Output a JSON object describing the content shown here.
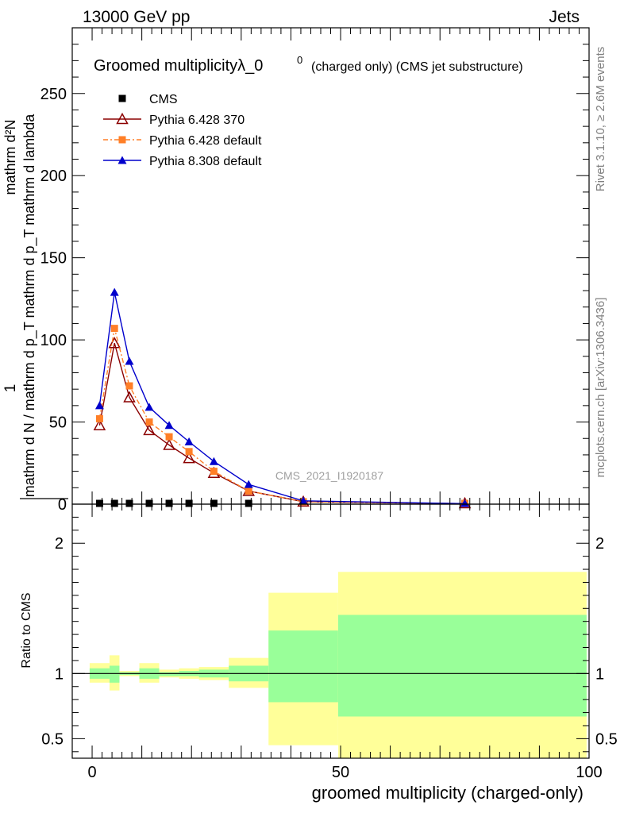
{
  "header": {
    "left": "13000 GeV pp",
    "right": "Jets"
  },
  "side_labels": {
    "rivet": "Rivet 3.1.10, ≥ 2.6M events",
    "mcplots": "mcplots.cern.ch [arXiv:1306.3436]"
  },
  "watermark": "CMS_2021_I1920187",
  "chart_data": [
    {
      "type": "line",
      "title": "Groomed multiplicityλ_0",
      "title_sup": "0",
      "subtitle": "(charged only) (CMS jet substructure)",
      "ylabel_num": "1",
      "ylabel_den": "mathrm d N / mathrm d p_T mathrm d p_T mathrm d lambda",
      "ylabel_num2": "mathrm d²N",
      "xlim": [
        -4,
        100
      ],
      "ylim": [
        0,
        290
      ],
      "yticks": [
        0,
        50,
        100,
        150,
        200,
        250
      ],
      "ytick_labels": [
        "0",
        "50",
        "100",
        "150",
        "200",
        "250"
      ],
      "legend_position": "top-left",
      "series": [
        {
          "name": "CMS",
          "color": "#000000",
          "marker": "square",
          "x": [
            1.5,
            4.5,
            7.5,
            11.5,
            15.5,
            19.5,
            24.5,
            31.5
          ],
          "y": [
            0.3,
            0.3,
            0.3,
            0.3,
            0.3,
            0.3,
            0.3,
            0.3
          ]
        },
        {
          "name": "Pythia 6.428 370",
          "color": "#8b0000",
          "marker": "open-triangle",
          "x": [
            1.5,
            4.5,
            7.5,
            11.5,
            15.5,
            19.5,
            24.5,
            31.5,
            42.5,
            75
          ],
          "y": [
            48,
            98,
            65,
            45,
            36,
            28,
            19,
            8,
            1.5,
            0.3
          ]
        },
        {
          "name": "Pythia 6.428 default",
          "color": "#ff7f27",
          "marker": "square",
          "x": [
            1.5,
            4.5,
            7.5,
            11.5,
            15.5,
            19.5,
            24.5,
            31.5,
            42.5,
            75
          ],
          "y": [
            52,
            107,
            72,
            50,
            41,
            32,
            20,
            8,
            1.5,
            0.3
          ]
        },
        {
          "name": "Pythia 8.308 default",
          "color": "#0000cc",
          "marker": "filled-triangle",
          "x": [
            1.5,
            4.5,
            7.5,
            11.5,
            15.5,
            19.5,
            24.5,
            31.5,
            42.5,
            75
          ],
          "y": [
            60,
            129,
            87,
            59,
            48,
            38,
            26,
            12,
            2,
            0.3
          ]
        }
      ]
    },
    {
      "type": "area",
      "ylabel": "Ratio to CMS",
      "xlabel": "groomed multiplicity (charged-only)",
      "xlim": [
        -4,
        100
      ],
      "ylim": [
        0.35,
        2.3
      ],
      "yticks": [
        0.5,
        1,
        2
      ],
      "ytick_labels": [
        "0.5",
        "1",
        "2"
      ],
      "xticks": [
        0,
        50,
        100
      ],
      "xtick_labels": [
        "0",
        "50",
        "100"
      ],
      "reference_line": 1,
      "bands": [
        {
          "x0": -0.5,
          "x1": 3.5,
          "inner": [
            0.96,
            1.04
          ],
          "outer": [
            0.93,
            1.08
          ]
        },
        {
          "x0": 3.5,
          "x1": 5.5,
          "inner": [
            0.93,
            1.06
          ],
          "outer": [
            0.87,
            1.14
          ]
        },
        {
          "x0": 5.5,
          "x1": 9.5,
          "inner": [
            0.99,
            1.01
          ],
          "outer": [
            0.98,
            1.02
          ]
        },
        {
          "x0": 9.5,
          "x1": 13.5,
          "inner": [
            0.96,
            1.04
          ],
          "outer": [
            0.93,
            1.08
          ]
        },
        {
          "x0": 13.5,
          "x1": 17.5,
          "inner": [
            0.98,
            1.01
          ],
          "outer": [
            0.97,
            1.03
          ]
        },
        {
          "x0": 17.5,
          "x1": 21.5,
          "inner": [
            0.98,
            1.02
          ],
          "outer": [
            0.96,
            1.04
          ]
        },
        {
          "x0": 21.5,
          "x1": 27.5,
          "inner": [
            0.97,
            1.03
          ],
          "outer": [
            0.95,
            1.05
          ]
        },
        {
          "x0": 27.5,
          "x1": 35.5,
          "inner": [
            0.94,
            1.06
          ],
          "outer": [
            0.89,
            1.12
          ]
        },
        {
          "x0": 35.5,
          "x1": 49.5,
          "inner": [
            0.78,
            1.33
          ],
          "outer": [
            0.45,
            1.62
          ]
        },
        {
          "x0": 49.5,
          "x1": 99.5,
          "inner": [
            0.67,
            1.45
          ],
          "outer": [
            0.3,
            1.78
          ]
        }
      ],
      "colors": {
        "inner": "#99ff99",
        "outer": "#ffff99"
      }
    }
  ]
}
